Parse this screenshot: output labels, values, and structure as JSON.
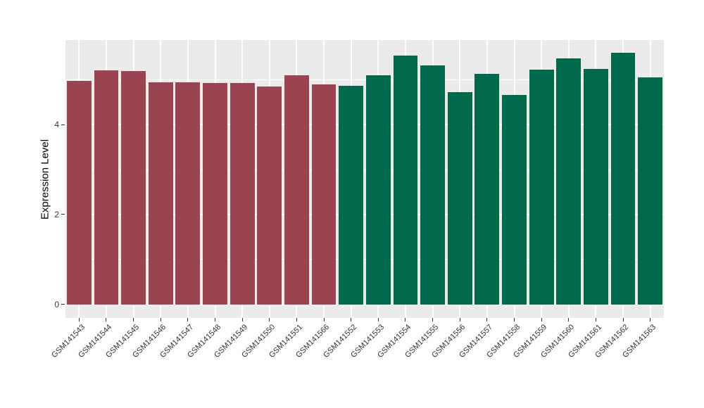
{
  "chart_data": {
    "type": "bar",
    "title": "",
    "xlabel": "",
    "ylabel": "Expression Level",
    "categories": [
      "GSM141543",
      "GSM141544",
      "GSM141545",
      "GSM141546",
      "GSM141547",
      "GSM141548",
      "GSM141549",
      "GSM141550",
      "GSM141551",
      "GSM141566",
      "GSM141552",
      "GSM141553",
      "GSM141554",
      "GSM141555",
      "GSM141556",
      "GSM141557",
      "GSM141558",
      "GSM141559",
      "GSM141560",
      "GSM141561",
      "GSM141562",
      "GSM141563"
    ],
    "values": [
      4.98,
      5.21,
      5.19,
      4.94,
      4.94,
      4.92,
      4.93,
      4.84,
      5.1,
      4.89,
      4.86,
      5.1,
      5.53,
      5.31,
      4.73,
      5.13,
      4.66,
      5.22,
      5.47,
      5.24,
      5.6,
      5.05
    ],
    "bar_groups": [
      "group1",
      "group1",
      "group1",
      "group1",
      "group1",
      "group1",
      "group1",
      "group1",
      "group1",
      "group1",
      "group2",
      "group2",
      "group2",
      "group2",
      "group2",
      "group2",
      "group2",
      "group2",
      "group2",
      "group2",
      "group2",
      "group2"
    ],
    "group_colors": {
      "group1": "#9C4352",
      "group2": "#006949"
    },
    "yticks": [
      "0",
      "2",
      "4"
    ],
    "ytick_values": [
      0,
      2,
      4
    ],
    "yminor_values": [
      1,
      3,
      5
    ],
    "ylim": [
      -0.3,
      5.88
    ],
    "bar_width_fraction": 0.9,
    "grid": true,
    "legend_position": "none",
    "panel_bg": "#EBEBEB",
    "grid_color": "#FFFFFF",
    "axis_text_color": "#333333",
    "tick_color": "#333333"
  }
}
